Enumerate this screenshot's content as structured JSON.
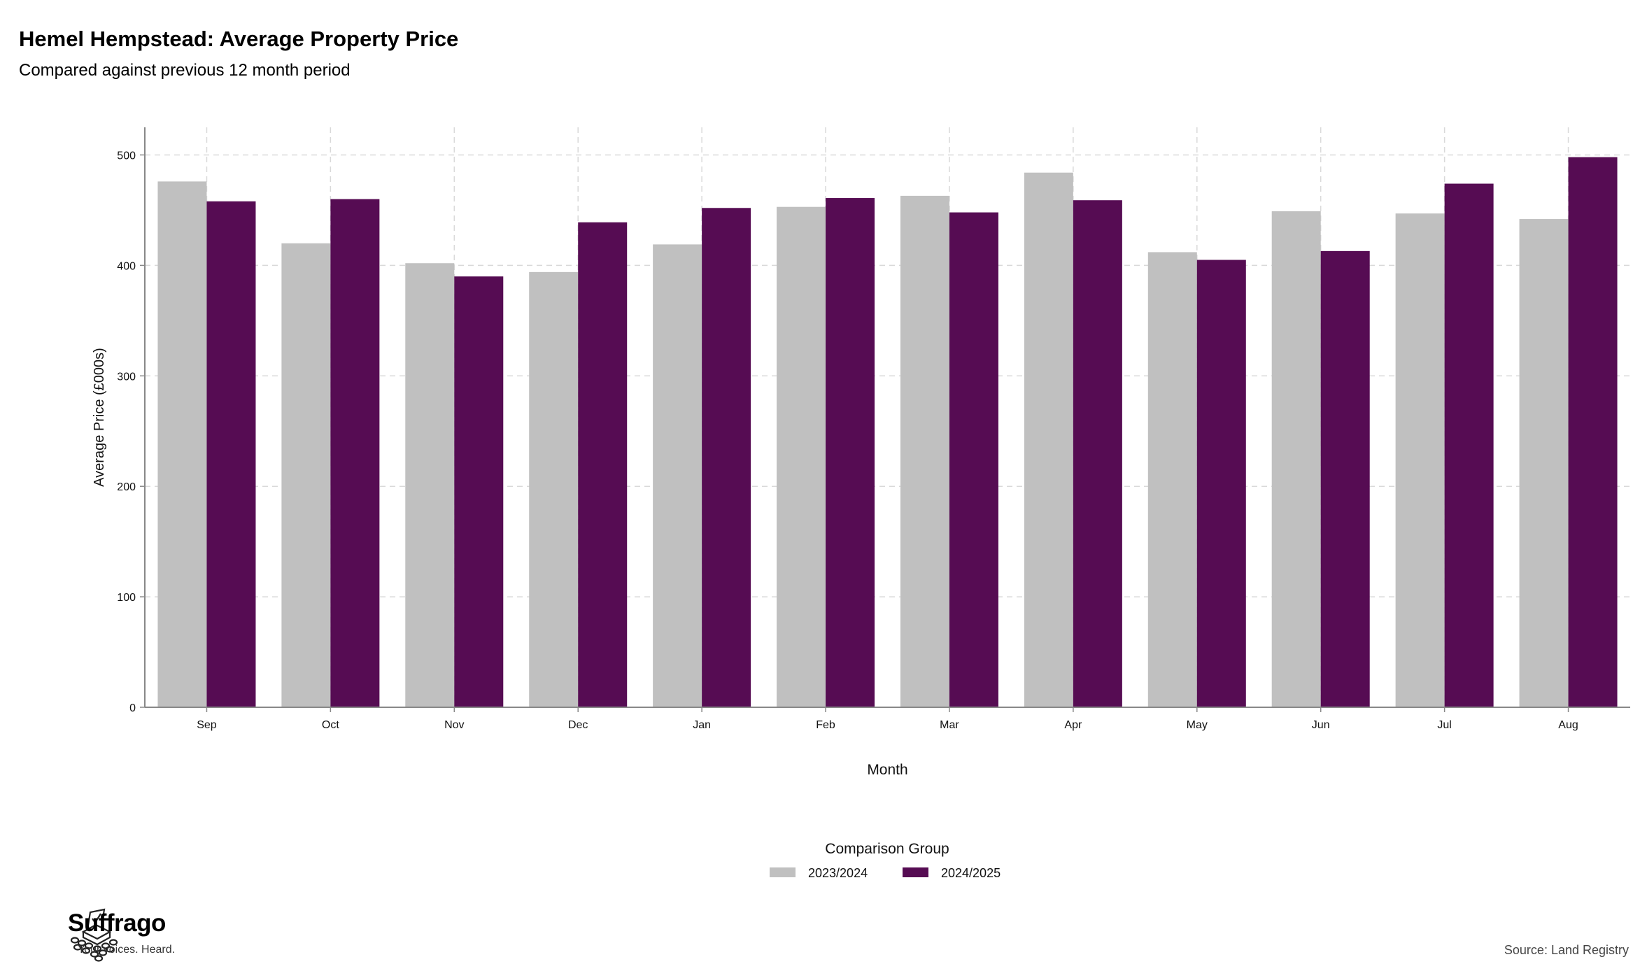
{
  "title": "Hemel Hempstead: Average Property Price",
  "subtitle": "Compared against previous 12 month period",
  "source": "Source: Land Registry",
  "brand": {
    "name": "Suffrago",
    "tagline": "Your voices. Heard."
  },
  "colors": {
    "series_2023_2024": "#c0c0c0",
    "series_2024_2025": "#560c53",
    "grid": "#d9d9d9",
    "axis": "#888888"
  },
  "chart_data": {
    "type": "bar",
    "xlabel": "Month",
    "ylabel": "Average Price (£000s)",
    "ylim": [
      0,
      525
    ],
    "yticks": [
      0,
      100,
      200,
      300,
      400,
      500
    ],
    "grid": true,
    "legend": {
      "title": "Comparison Group",
      "placement": "bottom"
    },
    "categories": [
      "Sep",
      "Oct",
      "Nov",
      "Dec",
      "Jan",
      "Feb",
      "Mar",
      "Apr",
      "May",
      "Jun",
      "Jul",
      "Aug"
    ],
    "series": [
      {
        "name": "2023/2024",
        "values": [
          476,
          420,
          402,
          394,
          419,
          453,
          463,
          484,
          412,
          449,
          447,
          442
        ]
      },
      {
        "name": "2024/2025",
        "values": [
          458,
          460,
          390,
          439,
          452,
          461,
          448,
          459,
          405,
          413,
          474,
          498
        ]
      }
    ]
  }
}
